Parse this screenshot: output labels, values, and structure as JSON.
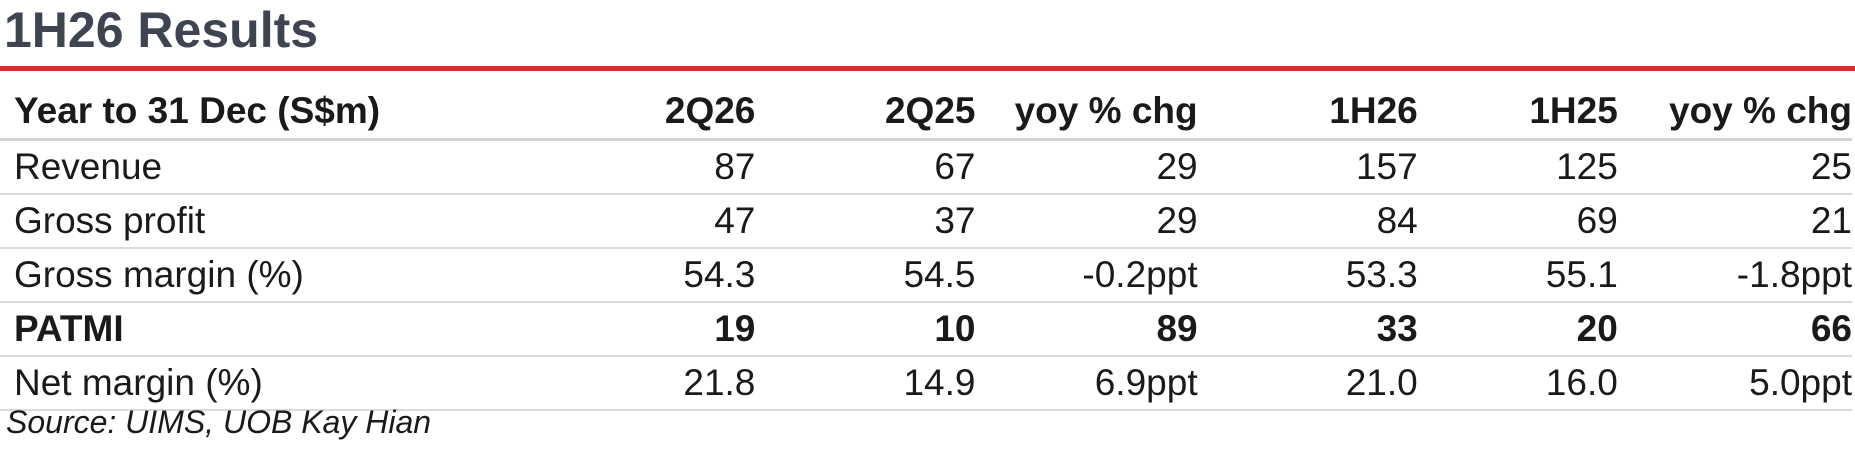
{
  "title": "1H26 Results",
  "accent_color": "#c8332c",
  "title_color": "#3f4451",
  "table": {
    "headers": [
      "Year to 31 Dec (S$m)",
      "2Q26",
      "2Q25",
      "yoy % chg",
      "1H26",
      "1H25",
      "yoy % chg"
    ],
    "rows": [
      {
        "label": "Revenue",
        "values": [
          "87",
          "67",
          "29",
          "157",
          "125",
          "25"
        ],
        "bold": false
      },
      {
        "label": "Gross profit",
        "values": [
          "47",
          "37",
          "29",
          "84",
          "69",
          "21"
        ],
        "bold": false
      },
      {
        "label": "Gross margin (%)",
        "values": [
          "54.3",
          "54.5",
          "-0.2ppt",
          "53.3",
          "55.1",
          "-1.8ppt"
        ],
        "bold": false
      },
      {
        "label": "PATMI",
        "values": [
          "19",
          "10",
          "89",
          "33",
          "20",
          "66"
        ],
        "bold": true
      },
      {
        "label": "Net margin (%)",
        "values": [
          "21.8",
          "14.9",
          "6.9ppt",
          "21.0",
          "16.0",
          "5.0ppt"
        ],
        "bold": false
      }
    ]
  },
  "source": "Source: UIMS, UOB Kay Hian"
}
